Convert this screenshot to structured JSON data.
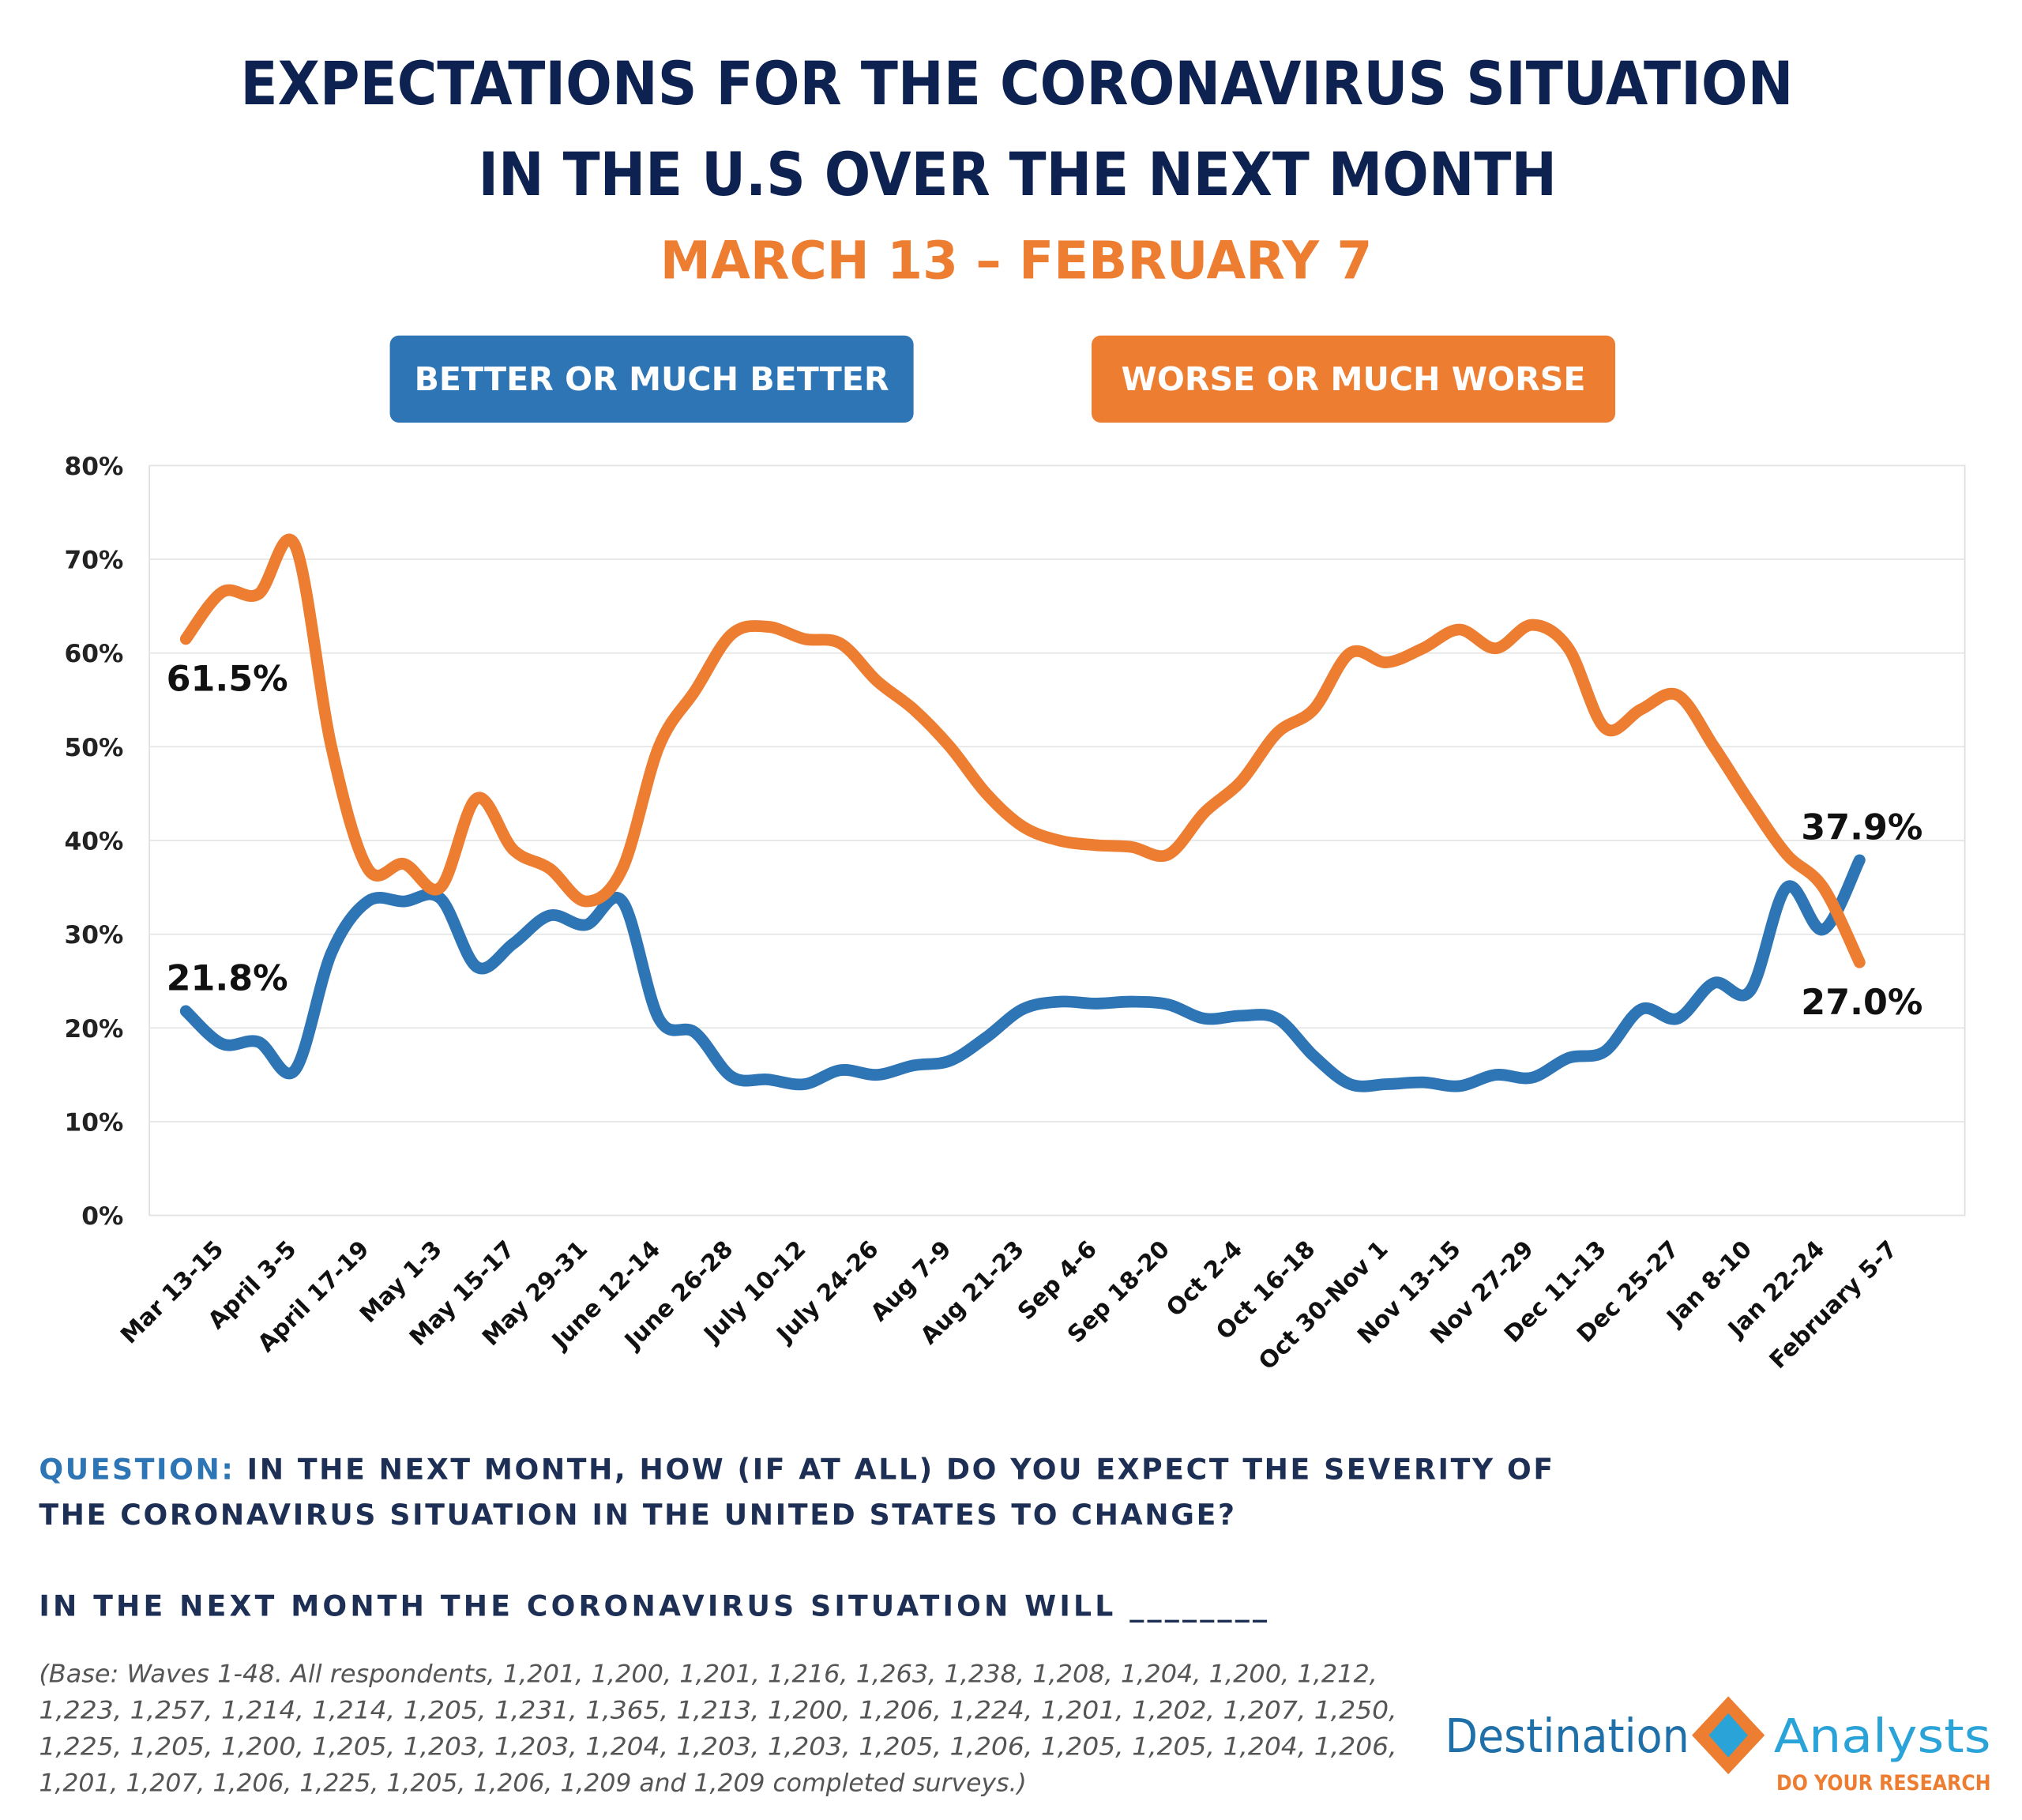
{
  "chart_data": {
    "type": "line",
    "title": [
      "EXPECTATIONS FOR THE CORONAVIRUS SITUATION",
      "IN THE U.S OVER THE NEXT MONTH"
    ],
    "subtitle": "MARCH 13 – FEBRUARY 7",
    "categories": [
      "Mar 13-15",
      null,
      "April 3-5",
      null,
      "April 17-19",
      null,
      "May 1-3",
      null,
      "May 15-17",
      null,
      "May 29-31",
      null,
      "June 12-14",
      null,
      "June 26-28",
      null,
      "July 10-12",
      null,
      "July 24-26",
      null,
      "Aug 7-9",
      null,
      "Aug 21-23",
      null,
      "Sep 4-6",
      null,
      "Sep 18-20",
      null,
      "Oct 2-4",
      null,
      "Oct 16-18",
      null,
      "Oct 30-Nov 1",
      null,
      "Nov 13-15",
      null,
      "Nov 27-29",
      null,
      "Dec 11-13",
      null,
      "Dec 25-27",
      null,
      "Jan 8-10",
      null,
      "Jan 22-24",
      null,
      "February 5-7"
    ],
    "series": [
      {
        "name": "BETTER OR MUCH BETTER",
        "color": "#2e75b6",
        "values": [
          21.8,
          18.3,
          18.5,
          15.5,
          28,
          33.5,
          33.5,
          33.8,
          26.5,
          29,
          32,
          31,
          33.5,
          21,
          19.5,
          14.8,
          14.5,
          14,
          15.5,
          15,
          16,
          16.5,
          19,
          22,
          22.8,
          22.6,
          22.8,
          22.5,
          21,
          21.3,
          21,
          17,
          14,
          14,
          14.2,
          13.8,
          15,
          14.7,
          16.8,
          17.5,
          22,
          21,
          24.8,
          24,
          35,
          30.5,
          37.9
        ],
        "value_labels": [
          "21.8%",
          null,
          null,
          null,
          null,
          null,
          null,
          null,
          null,
          null,
          null,
          null,
          null,
          null,
          null,
          null,
          null,
          null,
          null,
          null,
          null,
          null,
          null,
          null,
          null,
          null,
          null,
          null,
          null,
          null,
          null,
          null,
          null,
          null,
          null,
          null,
          null,
          null,
          null,
          null,
          null,
          null,
          null,
          null,
          null,
          null,
          "37.9%"
        ]
      },
      {
        "name": "WORSE OR MUCH WORSE",
        "color": "#ed7d31",
        "values": [
          61.5,
          66.5,
          66.3,
          71.5,
          50,
          37,
          37.5,
          35,
          44.5,
          39,
          37,
          33.5,
          37,
          50,
          56,
          62,
          62.8,
          61.5,
          61,
          57,
          54,
          50,
          45,
          41.5,
          40,
          39.5,
          39.3,
          38.5,
          43,
          46.3,
          51.5,
          54,
          60,
          59,
          60.5,
          62.5,
          60.5,
          63,
          60.5,
          52,
          54,
          55.5,
          50,
          44,
          38.5,
          35,
          27
        ],
        "value_labels": [
          "61.5%",
          null,
          null,
          null,
          null,
          null,
          null,
          null,
          null,
          null,
          null,
          null,
          null,
          null,
          null,
          null,
          null,
          null,
          null,
          null,
          null,
          null,
          null,
          null,
          null,
          null,
          null,
          null,
          null,
          null,
          null,
          null,
          null,
          null,
          null,
          null,
          null,
          null,
          null,
          null,
          null,
          null,
          null,
          null,
          null,
          null,
          "27.0%"
        ]
      }
    ],
    "ylim": [
      0,
      80
    ],
    "yticks": [
      {
        "value": 0,
        "label": "0%"
      },
      {
        "value": 10,
        "label": "10%"
      },
      {
        "value": 20,
        "label": "20%"
      },
      {
        "value": 30,
        "label": "30%"
      },
      {
        "value": 40,
        "label": "40%"
      },
      {
        "value": 50,
        "label": "50%"
      },
      {
        "value": 60,
        "label": "60%"
      },
      {
        "value": 70,
        "label": "70%"
      },
      {
        "value": 80,
        "label": "80%"
      }
    ],
    "grid": true
  },
  "footer": {
    "question_label": "QUESTION:",
    "question": [
      "IN THE NEXT MONTH, HOW (IF AT ALL) DO YOU EXPECT THE SEVERITY OF",
      "THE CORONAVIRUS SITUATION IN THE UNITED STATES TO CHANGE?"
    ],
    "prompt": "IN THE NEXT MONTH THE CORONAVIRUS SITUATION WILL ________",
    "base": [
      "(Base: Waves 1-48. All respondents, 1,201, 1,200, 1,201, 1,216, 1,263, 1,238, 1,208, 1,204, 1,200, 1,212,",
      "1,223, 1,257, 1,214, 1,214, 1,205, 1,231, 1,365, 1,213, 1,200, 1,206, 1,224, 1,201, 1,202, 1,207, 1,250,",
      "1,225, 1,205, 1,200, 1,205, 1,203, 1,203, 1,204, 1,203, 1,203, 1,205, 1,206, 1,205, 1,205, 1,204, 1,206,",
      "1,201, 1,207, 1,206, 1,225, 1,205, 1,206, 1,209 and 1,209 completed surveys.)"
    ]
  },
  "logo": {
    "name1": "Destination",
    "name2": "Analysts",
    "tagline": "DO YOUR RESEARCH"
  }
}
